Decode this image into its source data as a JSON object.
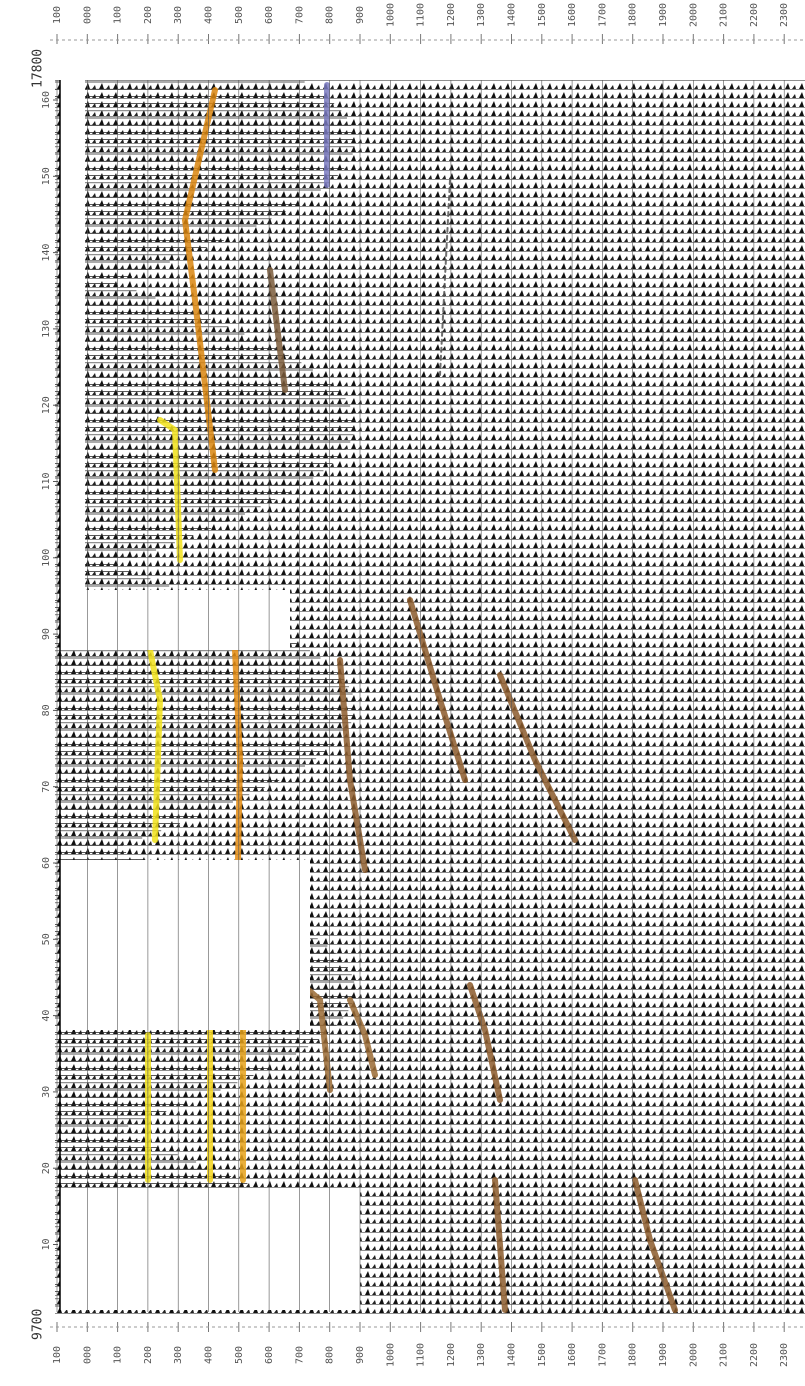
{
  "top_axis": {
    "labels": [
      "100",
      "000",
      "100",
      "200",
      "300",
      "400",
      "500",
      "600",
      "700",
      "800",
      "900",
      "1000",
      "1100",
      "1200",
      "1300",
      "1400",
      "1500",
      "1600",
      "1700",
      "1800",
      "1900",
      "2000",
      "2100",
      "2200",
      "2300"
    ]
  },
  "bottom_axis": {
    "labels": [
      "100",
      "000",
      "100",
      "200",
      "300",
      "400",
      "500",
      "600",
      "700",
      "800",
      "900",
      "1000",
      "1100",
      "1200",
      "1300",
      "1400",
      "1500",
      "1600",
      "1700",
      "1800",
      "1900",
      "2000",
      "2100",
      "2200",
      "2300"
    ]
  },
  "shotpoints": {
    "labels": [
      "160",
      "150",
      "140",
      "130",
      "120",
      "110",
      "100",
      "90",
      "80",
      "70",
      "60",
      "50",
      "40",
      "30",
      "20",
      "10"
    ]
  },
  "line_ends": {
    "start": "9700",
    "end": "17800"
  }
}
